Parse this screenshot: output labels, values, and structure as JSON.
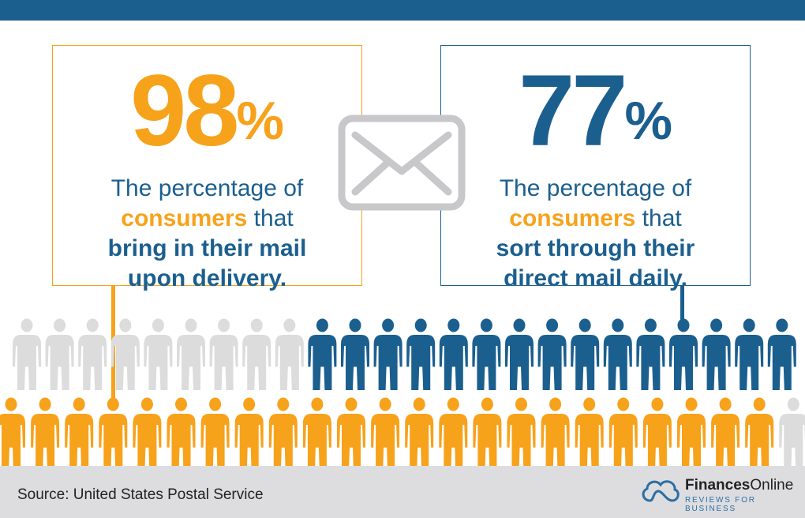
{
  "left_stat": {
    "value": "98",
    "unit": "%",
    "line1": "The percentage of",
    "highlight": "consumers",
    "line2_rest": " that",
    "line3": "bring in their mail",
    "line4": "upon delivery."
  },
  "right_stat": {
    "value": "77",
    "unit": "%",
    "line1": "The percentage of",
    "highlight": "consumers",
    "line2_rest": " that",
    "line3": "sort through their",
    "line4": "direct mail daily."
  },
  "icons": {
    "center": "envelope-icon",
    "figures": "person-icon",
    "logo": "cloud-logo-icon"
  },
  "pictogram": {
    "top_row": {
      "gray": 9,
      "blue": 15
    },
    "bottom_row": {
      "orange": 23,
      "gray": 1
    }
  },
  "colors": {
    "orange": "#f7a21b",
    "blue": "#1b5f8f",
    "gray": "#dcdcdd"
  },
  "footer": {
    "source": "Source: United States Postal Service",
    "brand_bold": "Finances",
    "brand_light": "Online",
    "tagline": "REVIEWS FOR BUSINESS"
  }
}
